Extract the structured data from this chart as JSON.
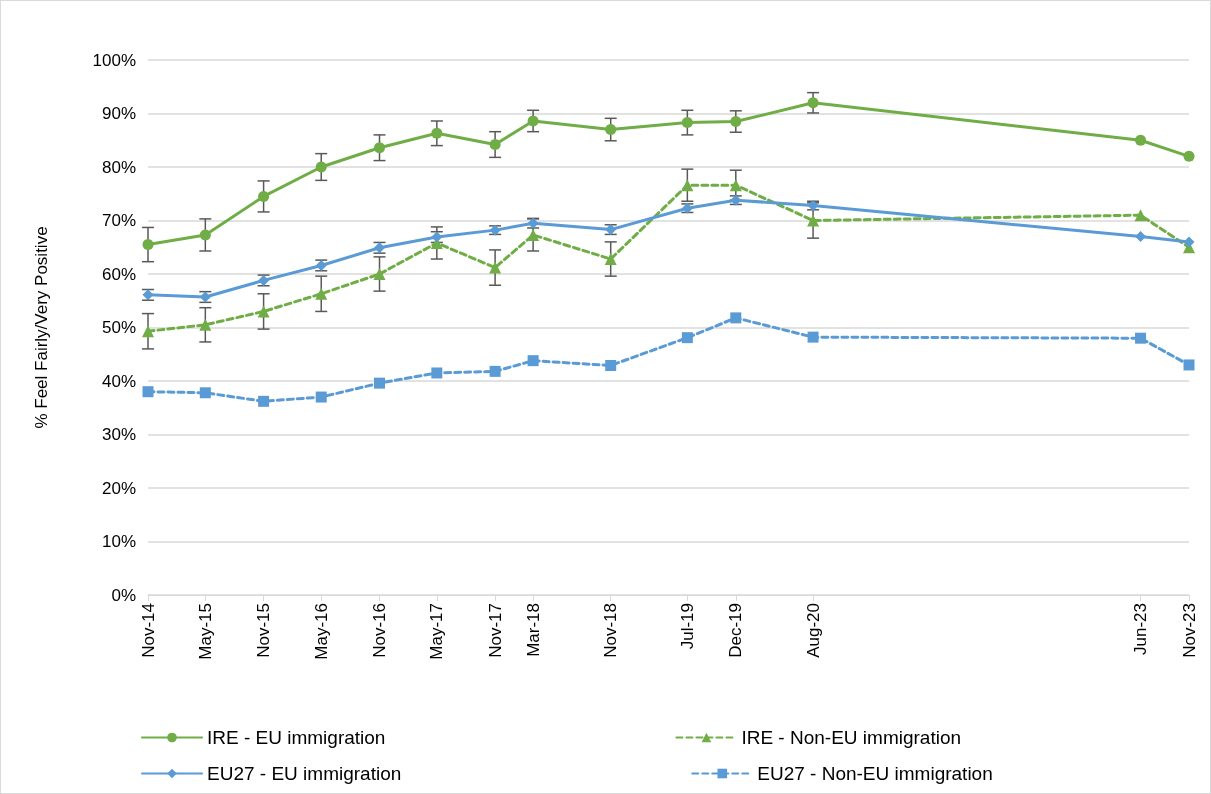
{
  "chart_data": {
    "type": "line",
    "ylabel": "% Feel Fairly/Very Positive",
    "x": [
      "2014-11",
      "2015-05",
      "2015-11",
      "2016-05",
      "2016-11",
      "2017-05",
      "2017-11",
      "2018-03",
      "2018-11",
      "2019-07",
      "2019-12",
      "2020-08",
      "2023-06",
      "2023-11"
    ],
    "xlim": [
      "2014-11",
      "2023-11"
    ],
    "xticks": [
      {
        "value": "2014-11",
        "label": "Nov-14"
      },
      {
        "value": "2015-05",
        "label": "May-15"
      },
      {
        "value": "2015-11",
        "label": "Nov-15"
      },
      {
        "value": "2016-05",
        "label": "May-16"
      },
      {
        "value": "2016-11",
        "label": "Nov-16"
      },
      {
        "value": "2017-05",
        "label": "May-17"
      },
      {
        "value": "2017-11",
        "label": "Nov-17"
      },
      {
        "value": "2018-03",
        "label": "Mar-18"
      },
      {
        "value": "2018-11",
        "label": "Nov-18"
      },
      {
        "value": "2019-07",
        "label": "Jul-19"
      },
      {
        "value": "2019-12",
        "label": "Dec-19"
      },
      {
        "value": "2020-08",
        "label": "Aug-20"
      },
      {
        "value": "2023-06",
        "label": "Jun-23"
      },
      {
        "value": "2023-11",
        "label": "Nov-23"
      }
    ],
    "ylim": [
      0,
      100
    ],
    "yticks": [
      {
        "value": 0,
        "label": "0%"
      },
      {
        "value": 10,
        "label": "10%"
      },
      {
        "value": 20,
        "label": "20%"
      },
      {
        "value": 30,
        "label": "30%"
      },
      {
        "value": 40,
        "label": "40%"
      },
      {
        "value": 50,
        "label": "50%"
      },
      {
        "value": 60,
        "label": "60%"
      },
      {
        "value": 70,
        "label": "70%"
      },
      {
        "value": 80,
        "label": "80%"
      },
      {
        "value": 90,
        "label": "90%"
      },
      {
        "value": 100,
        "label": "100%"
      }
    ],
    "grid": "y",
    "legend": "bottom",
    "series": [
      {
        "name": "IRE - EU immigration",
        "color": "#70ad47",
        "marker": "circle",
        "line_style": "solid",
        "values": [
          65.5,
          67.3,
          74.5,
          80,
          83.6,
          86.3,
          84.2,
          88.6,
          87,
          88.3,
          88.5,
          92,
          85,
          82
        ],
        "errors": [
          3.2,
          3,
          2.9,
          2.5,
          2.4,
          2.3,
          2.4,
          2,
          2.1,
          2.3,
          2,
          1.9,
          null,
          null
        ]
      },
      {
        "name": "IRE - Non-EU immigration",
        "color": "#70ad47",
        "marker": "triangle",
        "line_style": "dashed",
        "values": [
          49.3,
          50.5,
          53,
          56.3,
          60,
          65.8,
          61.2,
          67.3,
          62.8,
          76.6,
          76.6,
          70,
          71,
          65
        ],
        "errors": [
          3.3,
          3.2,
          3.3,
          3.3,
          3.2,
          3,
          3.3,
          3,
          3.2,
          3,
          2.8,
          3.3,
          null,
          null
        ]
      },
      {
        "name": "EU27 - EU immigration",
        "color": "#5b9bd5",
        "marker": "diamond",
        "line_style": "solid",
        "values": [
          56.1,
          55.7,
          58.8,
          61.6,
          64.9,
          66.9,
          68.2,
          69.5,
          68.3,
          72.3,
          73.8,
          72.8,
          67,
          66
        ],
        "errors": [
          1,
          1,
          1,
          1,
          1,
          1,
          0.8,
          0.9,
          0.9,
          0.8,
          0.8,
          0.8,
          null,
          null
        ]
      },
      {
        "name": "EU27 - Non-EU immigration",
        "color": "#5b9bd5",
        "marker": "square",
        "line_style": "dashed",
        "values": [
          38,
          37.8,
          36.2,
          37,
          39.6,
          41.5,
          41.8,
          43.8,
          42.9,
          48.1,
          51.8,
          48.2,
          48,
          43
        ]
      }
    ]
  }
}
